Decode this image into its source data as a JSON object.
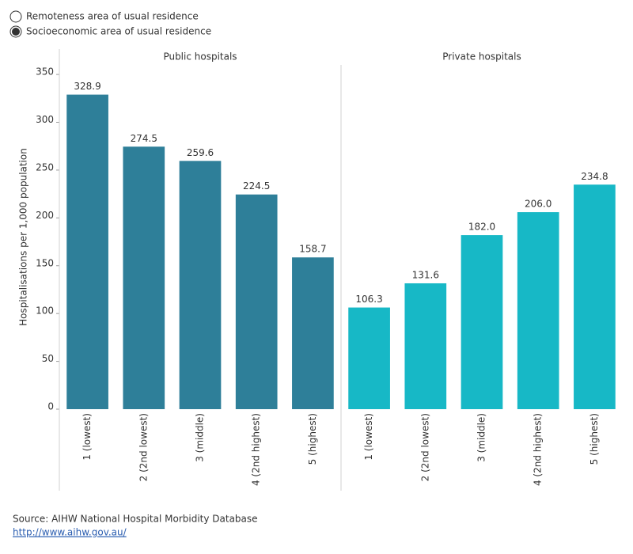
{
  "options": [
    "Remoteness area of usual residence",
    "Socioeconomic area of usual residence"
  ],
  "selected_option": 1,
  "chart_data": {
    "type": "bar",
    "y_label": "Hospitalisations per 1,000 population",
    "ylim": [
      0,
      360
    ],
    "yticks": [
      0,
      50,
      100,
      150,
      200,
      250,
      300,
      350
    ],
    "panels": [
      {
        "title": "Public hospitals",
        "color": "#2e7f99",
        "categories": [
          "1 (lowest)",
          "2 (2nd lowest)",
          "3 (middle)",
          "4 (2nd highest)",
          "5 (highest)"
        ],
        "values": [
          328.9,
          274.5,
          259.6,
          224.5,
          158.7
        ],
        "value_labels": [
          "328.9",
          "274.5",
          "259.6",
          "224.5",
          "158.7"
        ]
      },
      {
        "title": "Private hospitals",
        "color": "#17b8c6",
        "categories": [
          "1 (lowest)",
          "2 (2nd lowest)",
          "3 (middle)",
          "4 (2nd highest)",
          "5 (highest)"
        ],
        "values": [
          106.3,
          131.6,
          182.0,
          206.0,
          234.8
        ],
        "value_labels": [
          "106.3",
          "131.6",
          "182.0",
          "206.0",
          "234.8"
        ]
      }
    ]
  },
  "source": "Source: AIHW National Hospital Morbidity Database",
  "link": "http://www.aihw.gov.au/"
}
